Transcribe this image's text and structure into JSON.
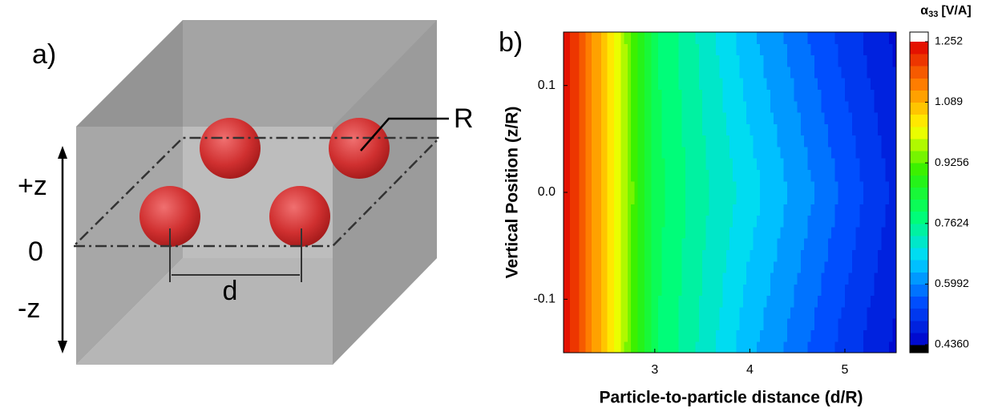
{
  "diagram": {
    "panel_label": "a)",
    "radius_label": "R",
    "plus_z": "+z",
    "zero": "0",
    "minus_z": "-z",
    "distance_label": "d"
  },
  "chart_data": {
    "type": "contour",
    "panel_label": "b)",
    "x_label": "Particle-to-particle distance (d/R)",
    "y_label": "Vertical Position (z/R)",
    "colorbar_label": [
      "α",
      "33",
      "[V/A]"
    ],
    "x": [
      2.04,
      2.5,
      3,
      3.5,
      4,
      4.5,
      5,
      5.54
    ],
    "y": [
      -0.15,
      0,
      0.15
    ],
    "values": [
      [
        1.25,
        1.06,
        0.8,
        0.72,
        0.64,
        0.58,
        0.52,
        0.46
      ],
      [
        1.25,
        1.06,
        0.81,
        0.74,
        0.68,
        0.62,
        0.56,
        0.49
      ],
      [
        1.25,
        1.06,
        0.8,
        0.72,
        0.64,
        0.58,
        0.52,
        0.46
      ]
    ],
    "xlim": [
      2.04,
      5.54
    ],
    "ylim": [
      -0.15,
      0.15
    ],
    "xticks": [
      3,
      4,
      5
    ],
    "yticks": [
      -0.1,
      {
        "value": 0,
        "label": "0.0"
      },
      0.1
    ],
    "clim": [
      0.436,
      1.252
    ],
    "levels": 25,
    "cticks": [
      {
        "value": 0.436,
        "label": "0.4360"
      },
      0.5992,
      0.7624,
      0.9256,
      1.089,
      1.252
    ],
    "colormap": [
      "#0000c8",
      "#0050ff",
      "#00d8ff",
      "#00ff70",
      "#30f000",
      "#ffff00",
      "#ff8000",
      "#e00000"
    ],
    "under_color": "#000000",
    "over_color": "#ffffff"
  }
}
